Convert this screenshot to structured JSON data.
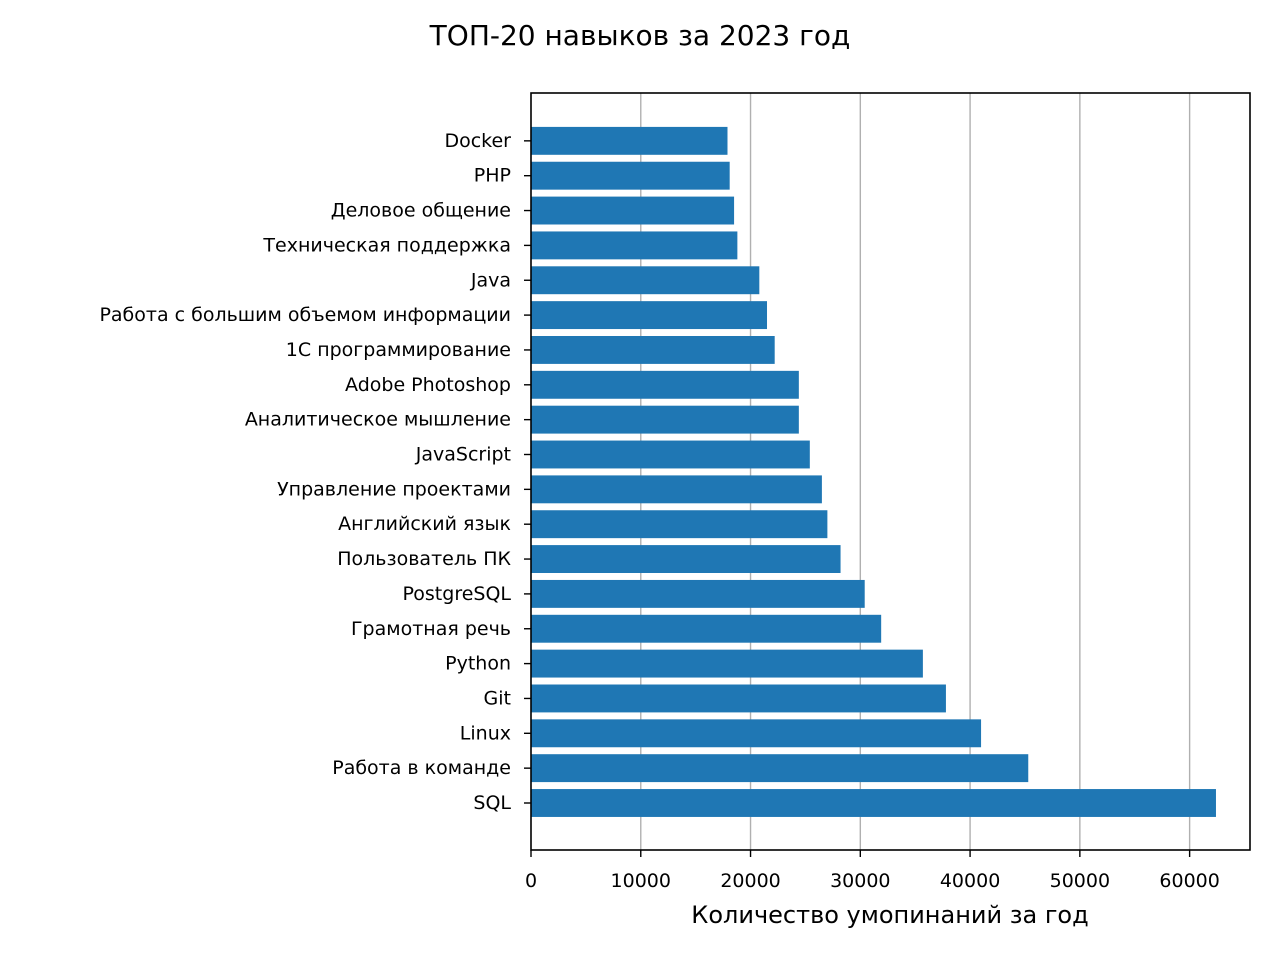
{
  "chart_data": {
    "type": "bar",
    "orientation": "horizontal",
    "title": "ТОП-20 навыков за 2023 год",
    "xlabel": "Количество умопинаний за год",
    "ylabel": "",
    "xlim": [
      0,
      65500
    ],
    "xticks": [
      0,
      10000,
      20000,
      30000,
      40000,
      50000,
      60000
    ],
    "grid": "x",
    "legend": "none",
    "bar_color": "#1f77b4",
    "categories": [
      "SQL",
      "Работа в команде",
      "Linux",
      "Git",
      "Python",
      "Грамотная речь",
      "PostgreSQL",
      "Пользователь ПК",
      "Английский язык",
      "Управление проектами",
      "JavaScript",
      "Аналитическое мышление",
      "Adobe Photoshop",
      "1С программирование",
      "Работа с большим объемом информации",
      "Java",
      "Техническая поддержка",
      "Деловое общение",
      "PHP",
      "Docker"
    ],
    "values": [
      62400,
      45300,
      41000,
      37800,
      35700,
      31900,
      30400,
      28200,
      27000,
      26500,
      25400,
      24400,
      24400,
      22200,
      21500,
      20800,
      18800,
      18500,
      18100,
      17900
    ]
  }
}
